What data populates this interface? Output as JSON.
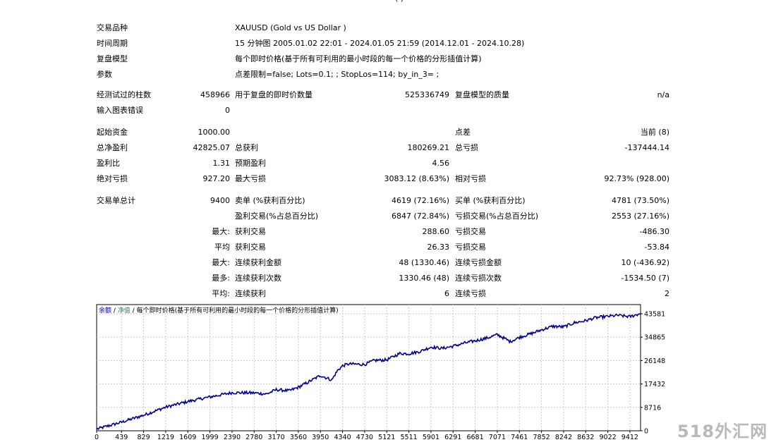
{
  "top_fragment": "(          )",
  "info": [
    {
      "label": "交易品种",
      "value": "XAUUSD (Gold vs US Dollar )"
    },
    {
      "label": "时间周期",
      "value": "15 分钟图 2005.01.02 22:01 - 2024.01.05 21:59 (2014.12.01 - 2024.10.28)"
    },
    {
      "label": "复盘模型",
      "value": "每个即时价格(基于所有可利用的最小时段的每一个价格的分形插值计算)"
    },
    {
      "label": "参数",
      "value": "点差限制=false; Lots=0.1; ; StopLos=114; by_in_3= ;"
    }
  ],
  "stats": {
    "bars_label": "经测试过的柱数",
    "bars_value": "458966",
    "ticks_label": "用于复盘的即时价数量",
    "ticks_value": "525336749",
    "quality_label": "复盘模型的质量",
    "quality_value": "n/a",
    "errors_label": "输入图表错误",
    "errors_value": "0",
    "deposit_label": "起始资金",
    "deposit_value": "1000.00",
    "spread_label": "点差",
    "spread_value": "当前 (8)",
    "net_label": "总净盈利",
    "net_value": "42825.07",
    "gross_profit_label": "总获利",
    "gross_profit_value": "180269.21",
    "gross_loss_label": "总亏损",
    "gross_loss_value": "-137444.14",
    "pf_label": "盈利比",
    "pf_value": "1.31",
    "exp_label": "预期盈利",
    "exp_value": "4.56",
    "abs_dd_label": "绝对亏损",
    "abs_dd_value": "927.20",
    "max_dd_label": "最大亏损",
    "max_dd_value": "3083.12 (8.63%)",
    "rel_dd_label": "相对亏损",
    "rel_dd_value": "92.73% (928.00)",
    "trades_label": "交易单总计",
    "trades_value": "9400",
    "short_label": "卖单 (%获利百分比)",
    "short_value": "4619 (72.16%)",
    "long_label": "买单 (%获利百分比)",
    "long_value": "4781 (73.50%)",
    "profit_trades_label": "盈利交易(%占总百分比)",
    "profit_trades_value": "6847 (72.84%)",
    "loss_trades_label": "亏损交易(%占总百分比)",
    "loss_trades_value": "2553 (27.16%)",
    "largest_label": "最大:",
    "largest_profit_label": "获利交易",
    "largest_profit_value": "288.60",
    "largest_loss_label": "亏损交易",
    "largest_loss_value": "-486.30",
    "average_label": "平均",
    "avg_profit_label": "获利交易",
    "avg_profit_value": "26.33",
    "avg_loss_label": "亏损交易",
    "avg_loss_value": "-53.84",
    "max_label": "最大:",
    "max_consec_win_label": "连续获利金额",
    "max_consec_win_value": "48 (1330.46)",
    "max_consec_loss_label": "连续亏损金额",
    "max_consec_loss_value": "10 (-436.92)",
    "most_label": "最多:",
    "most_consec_win_label": "连续获利次数",
    "most_consec_win_value": "1330.46 (48)",
    "most_consec_loss_label": "连续亏损次数",
    "most_consec_loss_value": "-1534.50 (7)",
    "avg2_label": "平均:",
    "avg_consec_win_label": "连续获利",
    "avg_consec_win_value": "6",
    "avg_consec_loss_label": "连续亏损",
    "avg_consec_loss_value": "2"
  },
  "chart_data": {
    "type": "line",
    "legend": [
      "余额",
      "净值",
      "每个即时价格(基于所有可利用的最小时段的每一个价格的分形插值计算)"
    ],
    "line_color": "#00008b",
    "xlim": [
      0,
      9600
    ],
    "ylim": [
      0,
      47000
    ],
    "x_ticks": [
      "0",
      "439",
      "829",
      "1219",
      "1609",
      "1999",
      "2390",
      "2780",
      "3170",
      "3560",
      "3950",
      "4340",
      "4730",
      "5121",
      "5511",
      "5901",
      "6291",
      "6681",
      "7071",
      "7461",
      "7852",
      "8242",
      "8632",
      "9022",
      "9412"
    ],
    "y_ticks": [
      "43581",
      "34865",
      "26148",
      "17432",
      "8716",
      "0"
    ],
    "grid": true,
    "series": [
      {
        "x": [
          0,
          200,
          439,
          829,
          1219,
          1609,
          1999,
          2390,
          2780,
          3000,
          3170,
          3400,
          3560,
          3750,
          3950,
          4150,
          4250,
          4340,
          4450,
          4730,
          4900,
          5121,
          5350,
          5511,
          5701,
          5901,
          6100,
          6291,
          6500,
          6681,
          6900,
          7071,
          7200,
          7300,
          7461,
          7700,
          7852,
          8050,
          8242,
          8432,
          8632,
          8800,
          9022,
          9200,
          9412,
          9600
        ],
        "y": [
          600,
          1800,
          3200,
          5800,
          8800,
          10900,
          12600,
          14200,
          14100,
          13700,
          15300,
          14900,
          16200,
          18300,
          20600,
          18900,
          22400,
          24200,
          24900,
          24700,
          26200,
          26400,
          28800,
          28700,
          29500,
          31200,
          30700,
          31500,
          32700,
          33500,
          34600,
          35800,
          34400,
          33200,
          34800,
          36400,
          37600,
          38900,
          38700,
          40200,
          41000,
          42100,
          42600,
          43000,
          42500,
          43700
        ]
      }
    ]
  },
  "watermark": "518外汇网"
}
